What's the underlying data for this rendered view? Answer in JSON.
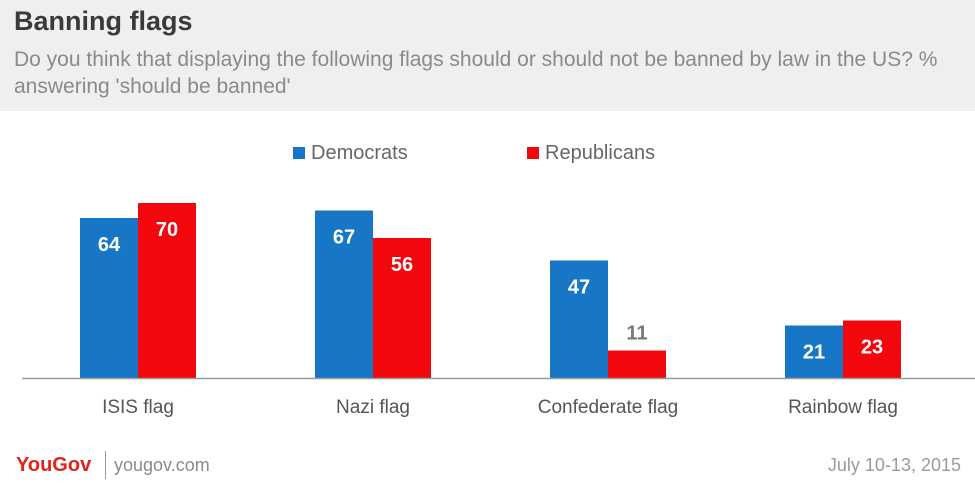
{
  "header": {
    "title": "Banning flags",
    "subtitle": "Do you think that displaying the following flags should or should not be banned by law in the US? % answering 'should be banned'"
  },
  "colors": {
    "democrats": "#1777c6",
    "republicans": "#f2070d",
    "header_bg": "#efefef",
    "brand": "#e2231a"
  },
  "chart_data": {
    "type": "bar",
    "categories": [
      "ISIS flag",
      "Nazi flag",
      "Confederate flag",
      "Rainbow flag"
    ],
    "series": [
      {
        "name": "Democrats",
        "values": [
          64,
          67,
          47,
          21
        ],
        "color": "#1777c6"
      },
      {
        "name": "Republicans",
        "values": [
          70,
          56,
          11,
          23
        ],
        "color": "#f2070d"
      }
    ],
    "title": "Banning flags",
    "xlabel": "",
    "ylabel": "",
    "ylim": [
      0,
      74
    ],
    "grid": false,
    "legend_position": "top-center",
    "data_labels": true
  },
  "footer": {
    "logo": "YouGov",
    "site": "yougov.com",
    "date": "July 10-13, 2015"
  }
}
